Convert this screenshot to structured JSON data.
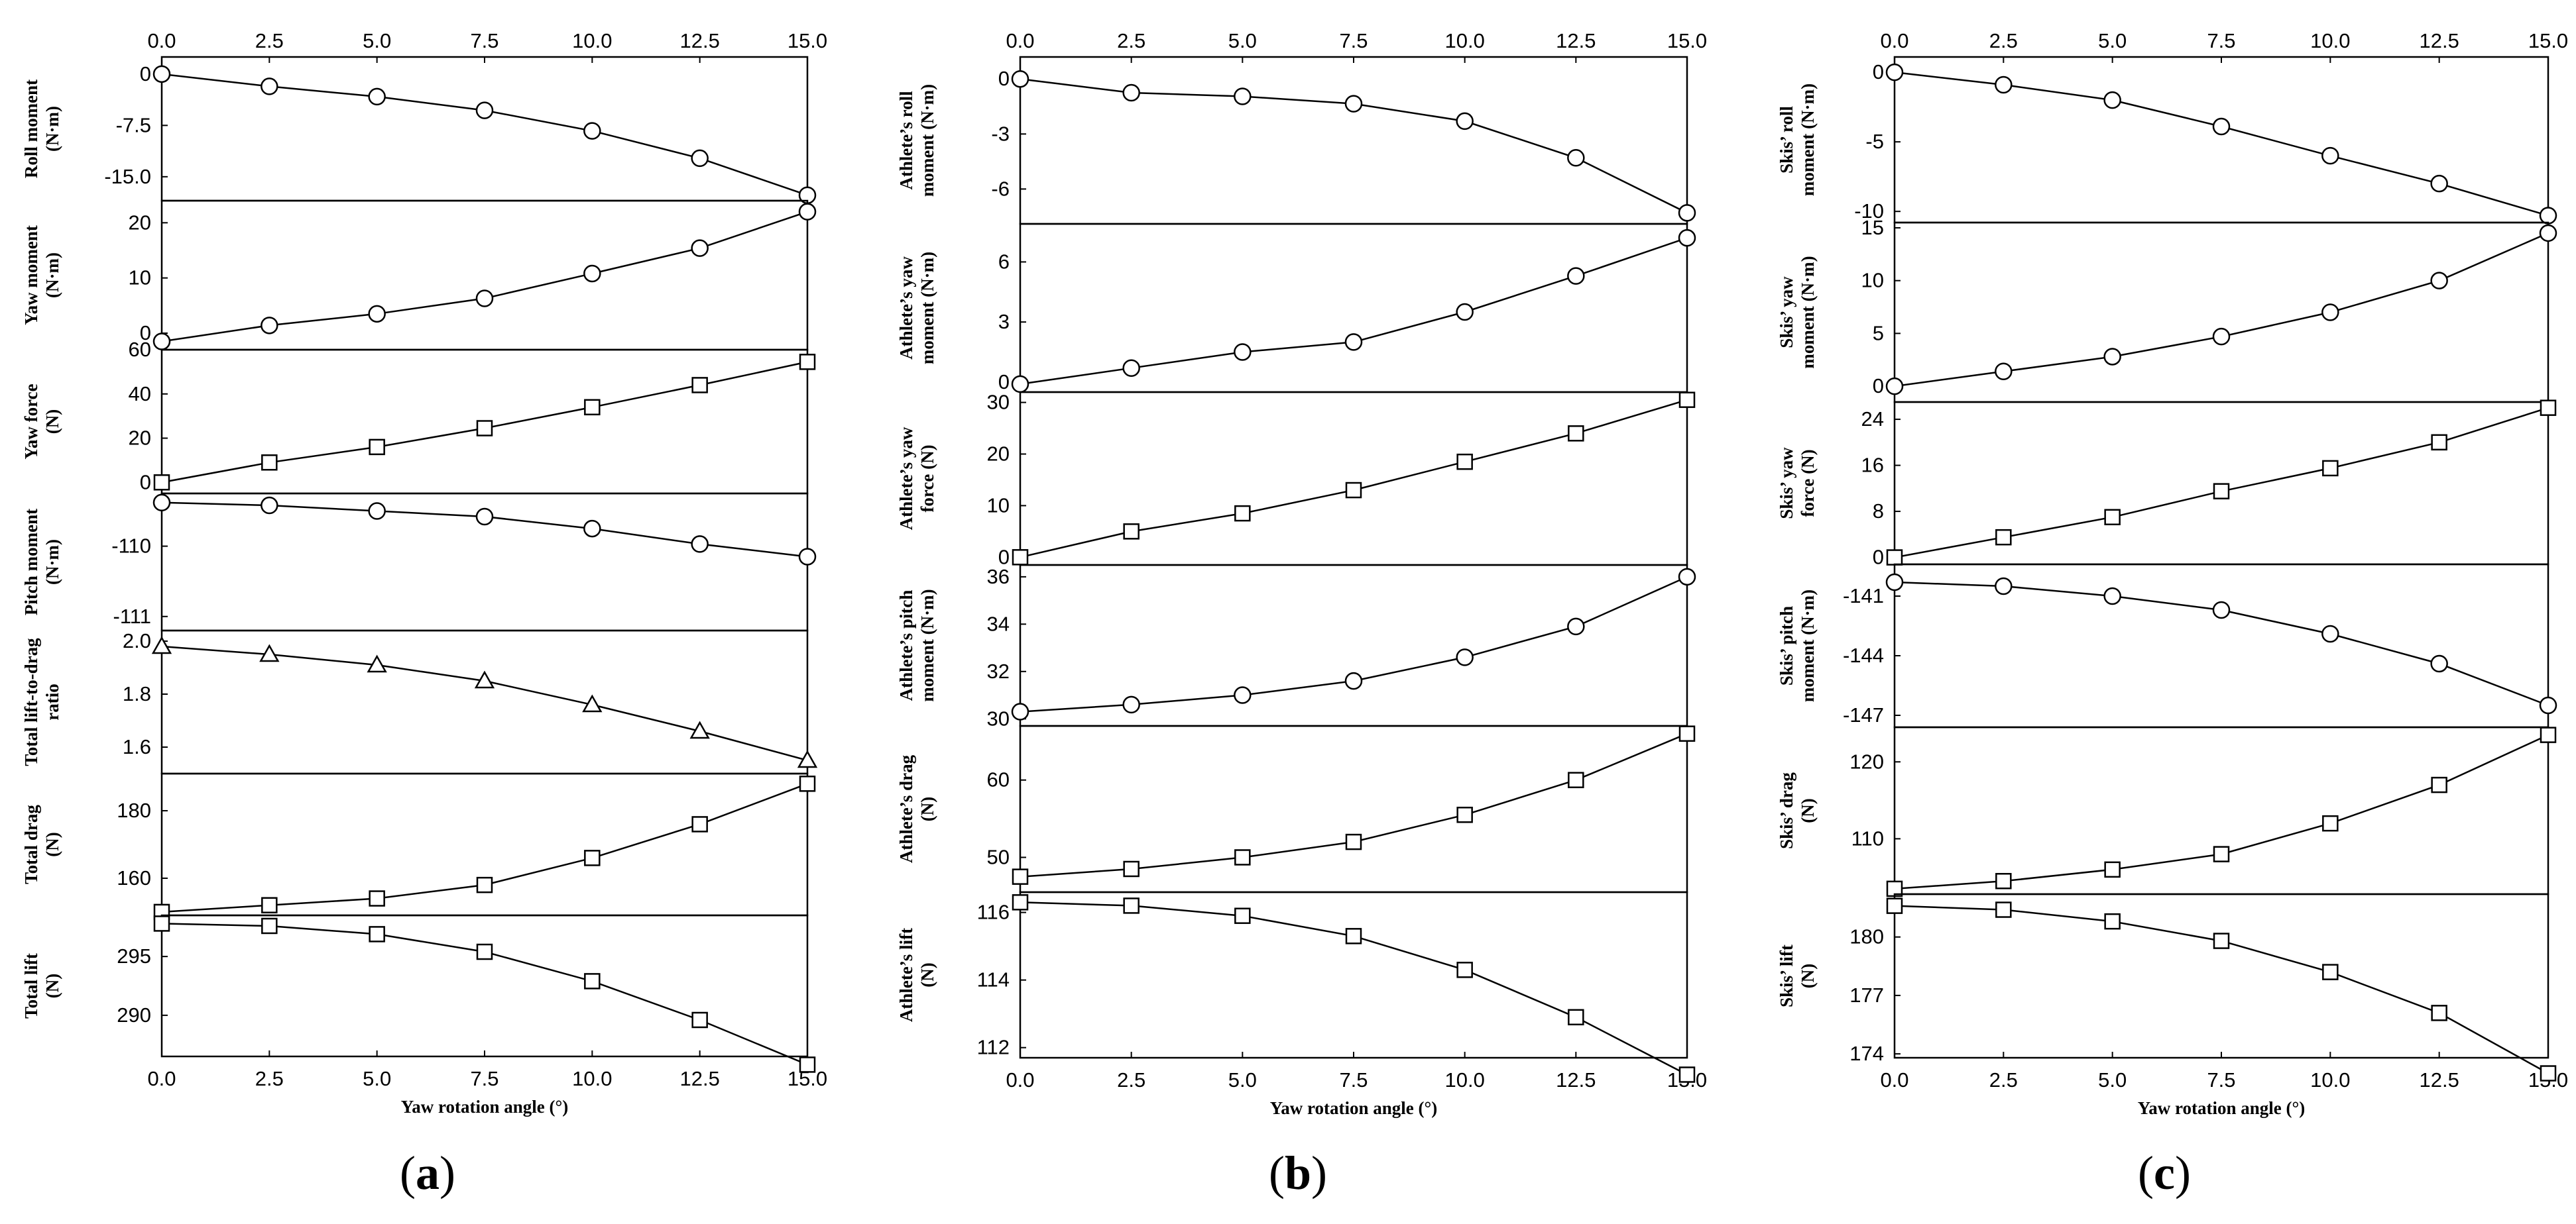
{
  "figure": {
    "panel_tags": [
      {
        "open": "(",
        "letter": "a",
        "close": ")"
      },
      {
        "open": "(",
        "letter": "b",
        "close": ")"
      },
      {
        "open": "(",
        "letter": "c",
        "close": ")"
      }
    ]
  },
  "chart_data": [
    {
      "panel": "a",
      "type": "line",
      "x": [
        0,
        2.5,
        5,
        7.5,
        10,
        12.5,
        15
      ],
      "xlim": [
        0,
        15
      ],
      "xticks": [
        "0.0",
        "2.5",
        "5.0",
        "7.5",
        "10.0",
        "12.5",
        "15.0"
      ],
      "xlabel": "Yaw rotation angle (°)",
      "subplots": [
        {
          "ylabel": [
            "Roll moment",
            "(N·m)"
          ],
          "marker": "circle",
          "ylim": [
            -18.5,
            2.5
          ],
          "yticks": [
            "0",
            "-7.5",
            "-15.0"
          ],
          "ytick_values": [
            0,
            -7.5,
            -15
          ],
          "values": [
            0,
            -1.8,
            -3.3,
            -5.3,
            -8.3,
            -12.3,
            -17.7
          ]
        },
        {
          "ylabel": [
            "Yaw moment",
            "(N·m)"
          ],
          "marker": "circle",
          "ylim": [
            -3,
            24
          ],
          "yticks": [
            "20",
            "10",
            "0"
          ],
          "ytick_values": [
            20,
            10,
            0
          ],
          "values": [
            -1.5,
            1.4,
            3.5,
            6.3,
            10.8,
            15.4,
            22.0
          ]
        },
        {
          "ylabel": [
            "Yaw force",
            "(N)"
          ],
          "marker": "square",
          "ylim": [
            -5,
            60
          ],
          "yticks": [
            "60",
            "40",
            "20",
            "0"
          ],
          "ytick_values": [
            60,
            40,
            20,
            0
          ],
          "values": [
            0,
            9,
            16,
            24.5,
            34,
            44,
            54.5
          ]
        },
        {
          "ylabel": [
            "Pitch moment",
            "(N·m)"
          ],
          "marker": "circle",
          "ylim": [
            -111.2,
            -109.25
          ],
          "yticks": [
            "-110",
            "-111"
          ],
          "ytick_values": [
            -110,
            -111
          ],
          "values": [
            -109.38,
            -109.42,
            -109.5,
            -109.58,
            -109.75,
            -109.97,
            -110.15
          ]
        },
        {
          "ylabel": [
            "Total lift-to-drag",
            "ratio"
          ],
          "marker": "triangle",
          "ylim": [
            1.5,
            2.04
          ],
          "yticks": [
            "2.0",
            "1.8",
            "1.6"
          ],
          "ytick_values": [
            2.0,
            1.8,
            1.6
          ],
          "values": [
            1.98,
            1.95,
            1.91,
            1.85,
            1.76,
            1.66,
            1.55
          ]
        },
        {
          "ylabel": [
            "Total drag",
            "(N)"
          ],
          "marker": "square",
          "ylim": [
            149,
            191
          ],
          "yticks": [
            "180",
            "160"
          ],
          "ytick_values": [
            180,
            160
          ],
          "values": [
            150,
            152,
            154,
            158,
            166,
            176,
            188
          ]
        },
        {
          "ylabel": [
            "Total lift",
            "(N)"
          ],
          "marker": "square",
          "ylim": [
            286.5,
            298.5
          ],
          "yticks": [
            "295",
            "290"
          ],
          "ytick_values": [
            295,
            290
          ],
          "values": [
            297.8,
            297.6,
            296.9,
            295.4,
            292.9,
            289.6,
            285.8
          ]
        }
      ]
    },
    {
      "panel": "b",
      "type": "line",
      "x": [
        0,
        2.5,
        5,
        7.5,
        10,
        12.5,
        15
      ],
      "xlim": [
        0,
        15
      ],
      "xticks": [
        "0.0",
        "2.5",
        "5.0",
        "7.5",
        "10.0",
        "12.5",
        "15.0"
      ],
      "xlabel": "Yaw rotation angle (°)",
      "subplots": [
        {
          "ylabel": [
            "Athlete’s roll",
            "moment (N·m)"
          ],
          "marker": "circle",
          "ylim": [
            -7.9,
            1.2
          ],
          "yticks": [
            "0",
            "-3",
            "-6"
          ],
          "ytick_values": [
            0,
            -3,
            -6
          ],
          "values": [
            0,
            -0.75,
            -0.95,
            -1.35,
            -2.3,
            -4.3,
            -7.3
          ]
        },
        {
          "ylabel": [
            "Athlete’s yaw",
            "moment (N·m)"
          ],
          "marker": "circle",
          "ylim": [
            -0.5,
            7.9
          ],
          "yticks": [
            "6",
            "3",
            "0"
          ],
          "ytick_values": [
            6,
            3,
            0
          ],
          "values": [
            -0.1,
            0.7,
            1.5,
            2.0,
            3.5,
            5.3,
            7.2
          ]
        },
        {
          "ylabel": [
            "Athlete’s yaw",
            "force (N)"
          ],
          "marker": "square",
          "ylim": [
            -1.5,
            32
          ],
          "yticks": [
            "30",
            "20",
            "10",
            "0"
          ],
          "ytick_values": [
            30,
            20,
            10,
            0
          ],
          "values": [
            0,
            5,
            8.5,
            13,
            18.5,
            24,
            30.5
          ]
        },
        {
          "ylabel": [
            "Athlete’s pitch",
            "moment (N·m)"
          ],
          "marker": "circle",
          "ylim": [
            29.7,
            36.5
          ],
          "yticks": [
            "36",
            "34",
            "32",
            "30"
          ],
          "ytick_values": [
            36,
            34,
            32,
            30
          ],
          "values": [
            30.3,
            30.6,
            31.0,
            31.6,
            32.6,
            33.9,
            36.0
          ]
        },
        {
          "ylabel": [
            "Athlete’s drag",
            "(N)"
          ],
          "marker": "square",
          "ylim": [
            45.5,
            67
          ],
          "yticks": [
            "60",
            "50"
          ],
          "ytick_values": [
            60,
            50
          ],
          "values": [
            47.5,
            48.5,
            50,
            52,
            55.5,
            60,
            66
          ]
        },
        {
          "ylabel": [
            "Athlete’s lift",
            "(N)"
          ],
          "marker": "square",
          "ylim": [
            111.7,
            116.6
          ],
          "yticks": [
            "116",
            "114",
            "112"
          ],
          "ytick_values": [
            116,
            114,
            112
          ],
          "values": [
            116.3,
            116.2,
            115.9,
            115.3,
            114.3,
            112.9,
            111.2
          ]
        }
      ]
    },
    {
      "panel": "c",
      "type": "line",
      "x": [
        0,
        2.5,
        5,
        7.5,
        10,
        12.5,
        15
      ],
      "xlim": [
        0,
        15
      ],
      "xticks": [
        "0.0",
        "2.5",
        "5.0",
        "7.5",
        "10.0",
        "12.5",
        "15.0"
      ],
      "xlabel": "Yaw rotation angle (°)",
      "subplots": [
        {
          "ylabel": [
            "Skis’ roll",
            "moment (N·m)"
          ],
          "marker": "circle",
          "ylim": [
            -10.8,
            1.1
          ],
          "yticks": [
            "0",
            "-5",
            "-10"
          ],
          "ytick_values": [
            0,
            -5,
            -10
          ],
          "values": [
            0,
            -0.9,
            -2.0,
            -3.9,
            -6.0,
            -8.0,
            -10.3
          ]
        },
        {
          "ylabel": [
            "Skis’ yaw",
            "moment (N·m)"
          ],
          "marker": "circle",
          "ylim": [
            -1.5,
            15.5
          ],
          "yticks": [
            "15",
            "10",
            "5",
            "0"
          ],
          "ytick_values": [
            15,
            10,
            5,
            0
          ],
          "values": [
            0,
            1.4,
            2.8,
            4.7,
            7.0,
            10.0,
            14.5
          ]
        },
        {
          "ylabel": [
            "Skis’ yaw",
            "force (N)"
          ],
          "marker": "square",
          "ylim": [
            -1.2,
            27
          ],
          "yticks": [
            "24",
            "16",
            "8",
            "0"
          ],
          "ytick_values": [
            24,
            16,
            8,
            0
          ],
          "values": [
            0,
            3.5,
            7,
            11.5,
            15.5,
            20,
            26
          ]
        },
        {
          "ylabel": [
            "Skis’ pitch",
            "moment (N·m)"
          ],
          "marker": "circle",
          "ylim": [
            -147.6,
            -139.4
          ],
          "yticks": [
            "-141",
            "-144",
            "-147"
          ],
          "ytick_values": [
            -141,
            -144,
            -147
          ],
          "values": [
            -140.3,
            -140.5,
            -141.0,
            -141.7,
            -142.9,
            -144.4,
            -146.5
          ]
        },
        {
          "ylabel": [
            "Skis’ drag",
            "(N)"
          ],
          "marker": "square",
          "ylim": [
            102.8,
            124.5
          ],
          "yticks": [
            "120",
            "110"
          ],
          "ytick_values": [
            120,
            110
          ],
          "values": [
            103.5,
            104.5,
            106,
            108,
            112,
            117,
            123.5
          ]
        },
        {
          "ylabel": [
            "Skis’ lift",
            "(N)"
          ],
          "marker": "square",
          "ylim": [
            173.8,
            182.2
          ],
          "yticks": [
            "180",
            "177",
            "174"
          ],
          "ytick_values": [
            180,
            177,
            174
          ],
          "values": [
            181.6,
            181.4,
            180.8,
            179.8,
            178.2,
            176.1,
            173.0
          ]
        }
      ]
    }
  ]
}
